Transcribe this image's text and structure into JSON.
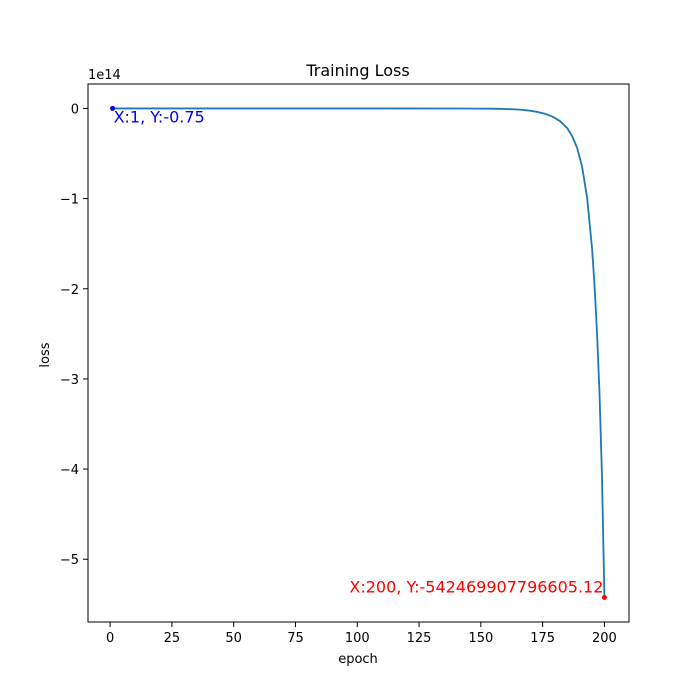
{
  "chart_data": {
    "type": "line",
    "title": "Training Loss",
    "xlabel": "epoch",
    "ylabel": "loss",
    "y_offset_label": "1e14",
    "xlim": [
      -8.95,
      209.95
    ],
    "ylim": [
      -569600000000000.0,
      27100000000000.0
    ],
    "x_ticks": [
      0,
      25,
      50,
      75,
      100,
      125,
      150,
      175,
      200
    ],
    "y_ticks": [
      0,
      -1,
      -2,
      -3,
      -4,
      -5
    ],
    "y_tick_scale": 100000000000000.0,
    "grid": false,
    "series": [
      {
        "color": "#1f77b4",
        "x": [
          1,
          100,
          140,
          150,
          155,
          160,
          165,
          170,
          173,
          176,
          179,
          182,
          185,
          187,
          189,
          191,
          193,
          195,
          196,
          197,
          198,
          199,
          200
        ],
        "y": [
          -0.75,
          -1000000000.0,
          -60000000000.0,
          -170000000000.0,
          -300000000000.0,
          -600000000000.0,
          -1200000000000.0,
          -2500000000000.0,
          -4000000000000.0,
          -6000000000000.0,
          -9000000000000.0,
          -14000000000000.0,
          -22000000000000.0,
          -31000000000000.0,
          -44000000000000.0,
          -65000000000000.0,
          -99000000000000.0,
          -155000000000000.0,
          -196000000000000.0,
          -248000000000000.0,
          -315000000000000.0,
          -406000000000000.0,
          -542469907796605.0
        ]
      }
    ],
    "annotations": [
      {
        "text": "X:1, Y:-0.75",
        "x": 1,
        "y": -0.75,
        "color": "#0000ff"
      },
      {
        "text": "X:200, Y:-542469907796605.12",
        "x": 200,
        "y": -542469907796605.1,
        "color": "#ff0000"
      }
    ]
  }
}
